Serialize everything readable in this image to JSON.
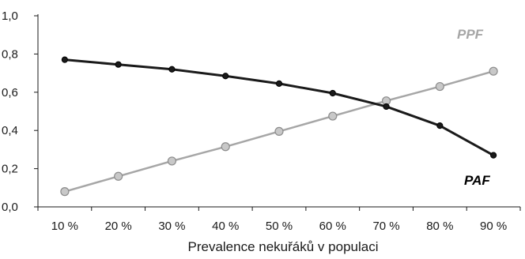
{
  "chart_data": {
    "type": "line",
    "title": "",
    "xlabel": "Prevalence nekuřáků v populaci",
    "ylabel": "",
    "categories": [
      "10 %",
      "20 %",
      "30 %",
      "40 %",
      "50 %",
      "60 %",
      "70 %",
      "80 %",
      "90 %"
    ],
    "ylim": [
      0,
      1.0
    ],
    "yticks": [
      "0,0",
      "0,2",
      "0,4",
      "0,6",
      "0,8",
      "1,0"
    ],
    "grid": false,
    "legend": "none",
    "series": [
      {
        "name": "PAF",
        "color": "#1a1a1a",
        "marker_fill": "#1a1a1a",
        "values": [
          0.77,
          0.745,
          0.72,
          0.685,
          0.645,
          0.595,
          0.525,
          0.425,
          0.27
        ]
      },
      {
        "name": "PPF",
        "color": "#a6a6a6",
        "marker_fill": "#c8c8c8",
        "values": [
          0.08,
          0.16,
          0.24,
          0.315,
          0.395,
          0.475,
          0.555,
          0.63,
          0.71
        ]
      }
    ]
  }
}
